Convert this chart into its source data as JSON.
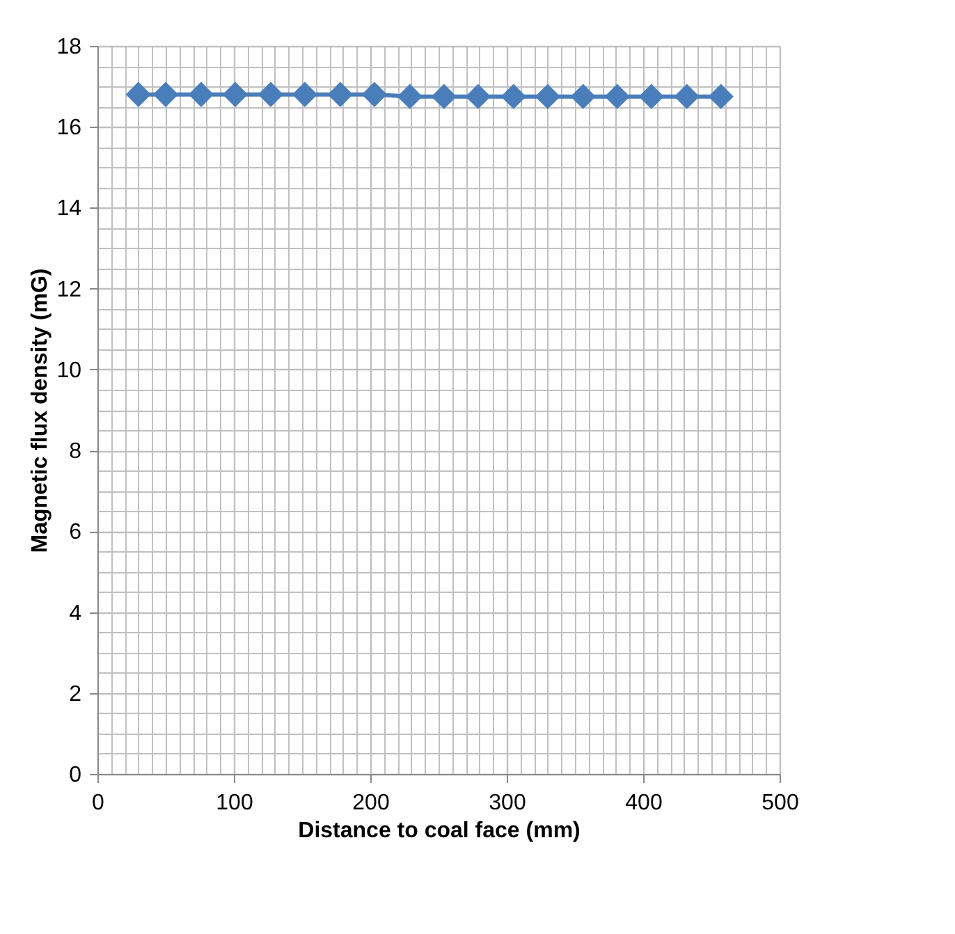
{
  "chart_data": {
    "type": "line",
    "xlabel": "Distance to coal face (mm)",
    "ylabel": "Magnetic flux density (mG)",
    "x": [
      30,
      50,
      76,
      101,
      127,
      152,
      178,
      203,
      229,
      254,
      279,
      305,
      330,
      356,
      381,
      406,
      432,
      457
    ],
    "series": [
      {
        "color": "#4a7ebb",
        "values": [
          16.8,
          16.8,
          16.8,
          16.8,
          16.8,
          16.8,
          16.8,
          16.8,
          16.75,
          16.75,
          16.75,
          16.75,
          16.75,
          16.75,
          16.75,
          16.75,
          16.75,
          16.75
        ]
      }
    ],
    "xlim": [
      0,
      500
    ],
    "ylim": [
      0,
      18
    ],
    "xticks": [
      0,
      {
        "value": 10,
        "label": null
      },
      {
        "value": 20,
        "label": null
      },
      {
        "value": 30,
        "label": null
      },
      {
        "value": 40,
        "label": null
      },
      {
        "value": 50,
        "label": null
      },
      {
        "value": 60,
        "label": null
      },
      {
        "value": 70,
        "label": null
      },
      {
        "value": 80,
        "label": null
      },
      {
        "value": 90,
        "label": null
      },
      100,
      {
        "value": 110,
        "label": null
      },
      {
        "value": 120,
        "label": null
      },
      {
        "value": 130,
        "label": null
      },
      {
        "value": 140,
        "label": null
      },
      {
        "value": 150,
        "label": null
      },
      {
        "value": 160,
        "label": null
      },
      {
        "value": 170,
        "label": null
      },
      {
        "value": 180,
        "label": null
      },
      {
        "value": 190,
        "label": null
      },
      200,
      {
        "value": 210,
        "label": null
      },
      {
        "value": 220,
        "label": null
      },
      {
        "value": 230,
        "label": null
      },
      {
        "value": 240,
        "label": null
      },
      {
        "value": 250,
        "label": null
      },
      {
        "value": 260,
        "label": null
      },
      {
        "value": 270,
        "label": null
      },
      {
        "value": 280,
        "label": null
      },
      {
        "value": 290,
        "label": null
      },
      300,
      {
        "value": 310,
        "label": null
      },
      {
        "value": 320,
        "label": null
      },
      {
        "value": 330,
        "label": null
      },
      {
        "value": 340,
        "label": null
      },
      {
        "value": 350,
        "label": null
      },
      {
        "value": 360,
        "label": null
      },
      {
        "value": 370,
        "label": null
      },
      {
        "value": 380,
        "label": null
      },
      {
        "value": 390,
        "label": null
      },
      400,
      {
        "value": 410,
        "label": null
      },
      {
        "value": 420,
        "label": null
      },
      {
        "value": 430,
        "label": null
      },
      {
        "value": 440,
        "label": null
      },
      {
        "value": 450,
        "label": null
      },
      {
        "value": 460,
        "label": null
      },
      {
        "value": 470,
        "label": null
      },
      {
        "value": 480,
        "label": null
      },
      {
        "value": 490,
        "label": null
      },
      500
    ],
    "yticks": [
      0,
      {
        "value": 0.5,
        "label": null
      },
      {
        "value": 1,
        "label": null
      },
      {
        "value": 1.5,
        "label": null
      },
      2,
      {
        "value": 2.5,
        "label": null
      },
      {
        "value": 3,
        "label": null
      },
      {
        "value": 3.5,
        "label": null
      },
      4,
      {
        "value": 4.5,
        "label": null
      },
      {
        "value": 5,
        "label": null
      },
      {
        "value": 5.5,
        "label": null
      },
      6,
      {
        "value": 6.5,
        "label": null
      },
      {
        "value": 7,
        "label": null
      },
      {
        "value": 7.5,
        "label": null
      },
      8,
      {
        "value": 8.5,
        "label": null
      },
      {
        "value": 9,
        "label": null
      },
      {
        "value": 9.5,
        "label": null
      },
      10,
      {
        "value": 10.5,
        "label": null
      },
      {
        "value": 11,
        "label": null
      },
      {
        "value": 11.5,
        "label": null
      },
      12,
      {
        "value": 12.5,
        "label": null
      },
      {
        "value": 13,
        "label": null
      },
      {
        "value": 13.5,
        "label": null
      },
      14,
      {
        "value": 14.5,
        "label": null
      },
      {
        "value": 15,
        "label": null
      },
      {
        "value": 15.5,
        "label": null
      },
      16,
      {
        "value": 16.5,
        "label": null
      },
      {
        "value": 17,
        "label": null
      },
      {
        "value": 17.5,
        "label": null
      },
      18
    ],
    "grid": true,
    "marker": "diamond",
    "line_style": "solid"
  }
}
